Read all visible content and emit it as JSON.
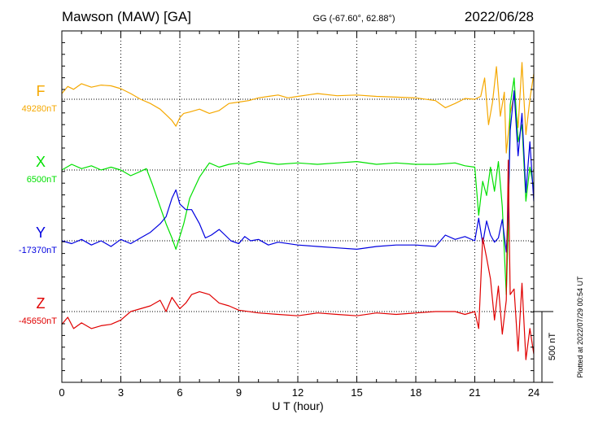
{
  "header": {
    "station": "Mawson (MAW)  [GA]",
    "coords": "GG (-67.60°,  62.88°)",
    "date": "2022/06/28"
  },
  "side_note": "Plotted at 2022/07/29 00:54 UT",
  "scale_label": "500 nT",
  "chart_data": {
    "type": "line",
    "title": "Mawson (MAW)  [GA]",
    "xlabel": "U T (hour)",
    "ylabel": "",
    "xlim": [
      0,
      24
    ],
    "x_ticks": [
      0,
      3,
      6,
      9,
      12,
      15,
      18,
      21,
      24
    ],
    "x_tick_labels": [
      "0",
      "3",
      "6",
      "9",
      "12",
      "15",
      "18",
      "21",
      "24"
    ],
    "grid": true,
    "scale_bar_nT": 500,
    "series": [
      {
        "name": "F",
        "baseline_label": "49280nT",
        "baseline_nT": 49280,
        "color": "#f5a800",
        "x": [
          0,
          0.3,
          0.6,
          1,
          1.5,
          2,
          2.5,
          3,
          3.5,
          4,
          4.5,
          5,
          5.3,
          5.6,
          5.8,
          6,
          6.2,
          6.5,
          7,
          7.5,
          8,
          8.5,
          9,
          9.5,
          10,
          10.5,
          11,
          11.5,
          12,
          13,
          14,
          15,
          16,
          17,
          18,
          19,
          19.5,
          20,
          20.5,
          21,
          21.3,
          21.5,
          21.7,
          21.9,
          22.1,
          22.3,
          22.5,
          22.6,
          22.7,
          22.8,
          23,
          23.2,
          23.4,
          23.6,
          23.8,
          24
        ],
        "values": [
          40,
          90,
          70,
          110,
          85,
          100,
          95,
          75,
          40,
          0,
          -30,
          -70,
          -110,
          -150,
          -190,
          -130,
          -100,
          -90,
          -70,
          -100,
          -80,
          -30,
          -20,
          -10,
          10,
          20,
          30,
          10,
          20,
          40,
          25,
          30,
          20,
          15,
          10,
          -10,
          -60,
          -30,
          5,
          0,
          20,
          150,
          -180,
          -20,
          230,
          -120,
          50,
          -380,
          -250,
          -100,
          30,
          -200,
          260,
          -250,
          0,
          180
        ]
      },
      {
        "name": "X",
        "baseline_label": "6500nT",
        "baseline_nT": 6500,
        "color": "#00e000",
        "x": [
          0,
          0.5,
          1,
          1.5,
          2,
          2.5,
          3,
          3.5,
          4,
          4.3,
          4.6,
          5,
          5.3,
          5.6,
          5.8,
          6,
          6.2,
          6.5,
          7,
          7.5,
          8,
          8.5,
          9,
          9.5,
          10,
          11,
          12,
          13,
          14,
          15,
          16,
          17,
          18,
          19,
          20,
          20.5,
          21,
          21.2,
          21.4,
          21.6,
          21.8,
          22,
          22.2,
          22.4,
          22.6,
          22.7,
          22.8,
          23,
          23.2,
          23.4,
          23.6,
          23.8,
          24
        ],
        "values": [
          0,
          40,
          10,
          30,
          0,
          20,
          0,
          -40,
          -10,
          10,
          -100,
          -260,
          -380,
          -480,
          -560,
          -470,
          -380,
          -200,
          -50,
          50,
          20,
          40,
          50,
          40,
          60,
          40,
          50,
          40,
          50,
          60,
          40,
          50,
          40,
          40,
          50,
          30,
          20,
          -320,
          -80,
          -180,
          20,
          -150,
          60,
          -260,
          -880,
          -420,
          460,
          650,
          200,
          320,
          -220,
          20,
          -130
        ]
      },
      {
        "name": "Y",
        "baseline_label": "-17370nT",
        "baseline_nT": -17370,
        "color": "#0000e0",
        "x": [
          0,
          0.5,
          1,
          1.5,
          2,
          2.5,
          3,
          3.5,
          4,
          4.5,
          5,
          5.3,
          5.6,
          5.8,
          6,
          6.3,
          6.6,
          7,
          7.3,
          7.6,
          8,
          8.3,
          8.6,
          9,
          9.3,
          9.6,
          10,
          10.5,
          11,
          12,
          13,
          14,
          15,
          16,
          17,
          18,
          19,
          19.5,
          20,
          20.5,
          21,
          21.2,
          21.4,
          21.6,
          21.8,
          22,
          22.2,
          22.4,
          22.6,
          22.7,
          22.8,
          23,
          23.2,
          23.4,
          23.6,
          23.8,
          24
        ],
        "values": [
          0,
          -20,
          10,
          -30,
          0,
          -40,
          10,
          -20,
          20,
          60,
          120,
          170,
          300,
          360,
          260,
          220,
          220,
          120,
          20,
          40,
          80,
          40,
          0,
          -20,
          30,
          0,
          10,
          -30,
          -10,
          -30,
          -40,
          -50,
          -60,
          -40,
          -30,
          -30,
          -40,
          40,
          10,
          30,
          0,
          160,
          -20,
          140,
          40,
          -10,
          20,
          150,
          -80,
          200,
          780,
          1060,
          600,
          900,
          340,
          700,
          280
        ]
      },
      {
        "name": "Z",
        "baseline_label": "-45650nT",
        "baseline_nT": -45650,
        "color": "#e00000",
        "x": [
          0,
          0.3,
          0.6,
          1,
          1.5,
          2,
          2.5,
          3,
          3.5,
          4,
          4.5,
          5,
          5.3,
          5.6,
          6,
          6.3,
          6.6,
          7,
          7.5,
          8,
          8.5,
          9,
          10,
          11,
          12,
          13,
          14,
          15,
          16,
          17,
          18,
          19,
          20,
          20.5,
          21,
          21.2,
          21.4,
          21.6,
          21.8,
          22,
          22.2,
          22.4,
          22.6,
          22.7,
          22.8,
          23,
          23.2,
          23.4,
          23.6,
          23.8,
          24
        ],
        "values": [
          -90,
          -40,
          -120,
          -80,
          -120,
          -100,
          -90,
          -60,
          0,
          20,
          40,
          80,
          0,
          100,
          20,
          60,
          120,
          140,
          120,
          60,
          40,
          10,
          -10,
          -20,
          -30,
          -10,
          -20,
          -30,
          -10,
          -20,
          -10,
          0,
          0,
          -20,
          0,
          -120,
          520,
          380,
          230,
          -60,
          180,
          -160,
          80,
          1070,
          120,
          160,
          -280,
          200,
          -340,
          -120,
          -300
        ]
      }
    ]
  }
}
